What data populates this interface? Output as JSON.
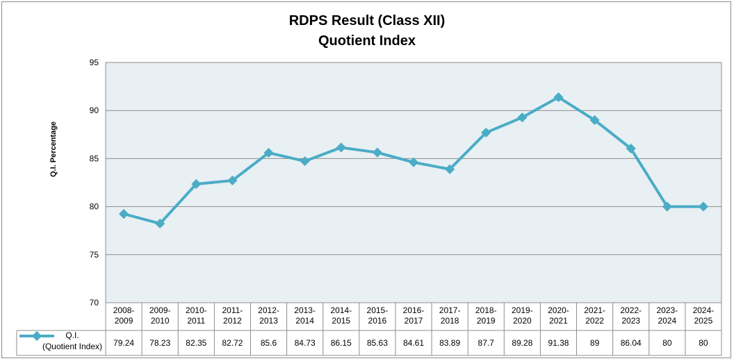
{
  "chart_data": {
    "type": "line",
    "title": "RDPS Result (Class XII)",
    "subtitle": "Quotient Index",
    "ylabel": "Q.I. Percentage",
    "xlabel": "",
    "ylim": [
      70,
      95
    ],
    "yticks": [
      70,
      75,
      80,
      85,
      90,
      95
    ],
    "grid": true,
    "legend_position": "bottom-left (data table)",
    "categories": [
      [
        "2008-",
        "2009"
      ],
      [
        "2009-",
        "2010"
      ],
      [
        "2010-",
        "2011"
      ],
      [
        "2011-",
        "2012"
      ],
      [
        "2012-",
        "2013"
      ],
      [
        "2013-",
        "2014"
      ],
      [
        "2014-",
        "2015"
      ],
      [
        "2015-",
        "2016"
      ],
      [
        "2016-",
        "2017"
      ],
      [
        "2017-",
        "2018"
      ],
      [
        "2018-",
        "2019"
      ],
      [
        "2019-",
        "2020"
      ],
      [
        "2020-",
        "2021"
      ],
      [
        "2021-",
        "2022"
      ],
      [
        "2022-",
        "2023"
      ],
      [
        "2023-",
        "2024"
      ],
      [
        "2024-",
        "2025"
      ]
    ],
    "series": [
      {
        "name": "Q.I.",
        "name_line2": "(Quotient Index)",
        "color": "#4BACC6",
        "values": [
          79.24,
          78.23,
          82.35,
          82.72,
          85.6,
          84.73,
          86.15,
          85.63,
          84.61,
          83.89,
          87.7,
          89.28,
          91.38,
          89,
          86.04,
          80,
          80
        ],
        "labels": [
          "79.24",
          "78.23",
          "82.35",
          "82.72",
          "85.6",
          "84.73",
          "86.15",
          "85.63",
          "84.61",
          "83.89",
          "87.7",
          "89.28",
          "91.38",
          "89",
          "86.04",
          "80",
          "80"
        ]
      }
    ],
    "colors": {
      "plot_background": "#E8F0F4",
      "gridline": "#8C8C8C",
      "table_border": "#8C8C8C"
    }
  }
}
